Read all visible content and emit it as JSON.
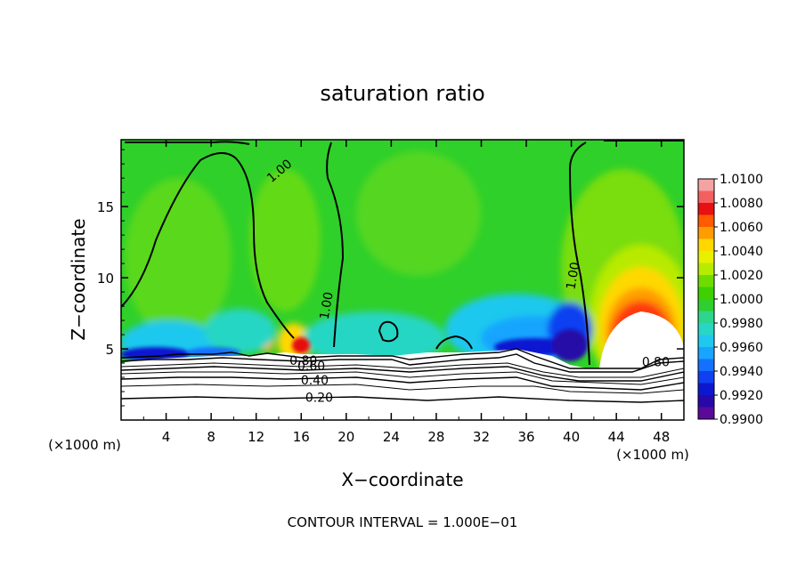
{
  "chart_data": {
    "type": "heatmap",
    "title": "saturation ratio",
    "xlabel": "X−coordinate",
    "ylabel": "Z−coordinate",
    "x_unit_label": "(×1000 m)",
    "y_unit_label": "(×1000 m)",
    "footer": "CONTOUR INTERVAL = 1.000E−01",
    "xlim": [
      0,
      50
    ],
    "ylim": [
      0,
      19.7
    ],
    "x_ticks": [
      4,
      8,
      12,
      16,
      20,
      24,
      28,
      32,
      36,
      40,
      44,
      48
    ],
    "y_ticks": [
      5,
      10,
      15
    ],
    "colorbar": {
      "range": [
        0.99,
        1.01
      ],
      "labels": [
        "1.0100",
        "1.0080",
        "1.0060",
        "1.0040",
        "1.0020",
        "1.0000",
        "0.9980",
        "0.9960",
        "0.9940",
        "0.9920",
        "0.9900"
      ],
      "colors": [
        "#f4a3a3",
        "#f46060",
        "#e81010",
        "#ff5a00",
        "#ff9d00",
        "#ffd800",
        "#e8f000",
        "#b6ec00",
        "#6fdc00",
        "#3ed000",
        "#2ecf2e",
        "#2ed58c",
        "#27d6c4",
        "#1ec8ee",
        "#18a4ff",
        "#1470ff",
        "#1040f0",
        "#0c18d0",
        "#2808a8",
        "#5a0a9a"
      ]
    },
    "contour_labels": [
      {
        "text": "1.00",
        "x": 14.3,
        "y": 17.6
      },
      {
        "text": "1.00",
        "x": 18.6,
        "y": 8.3
      },
      {
        "text": "1.00",
        "x": 40.5,
        "y": 10.4
      },
      {
        "text": "0.80",
        "x": 16.2,
        "y": 4.2
      },
      {
        "text": "0.60",
        "x": 16.9,
        "y": 3.8
      },
      {
        "text": "0.40",
        "x": 17.2,
        "y": 2.8
      },
      {
        "text": "0.20",
        "x": 17.6,
        "y": 1.6
      },
      {
        "text": "0.80",
        "x": 47.5,
        "y": 4.1
      }
    ]
  }
}
